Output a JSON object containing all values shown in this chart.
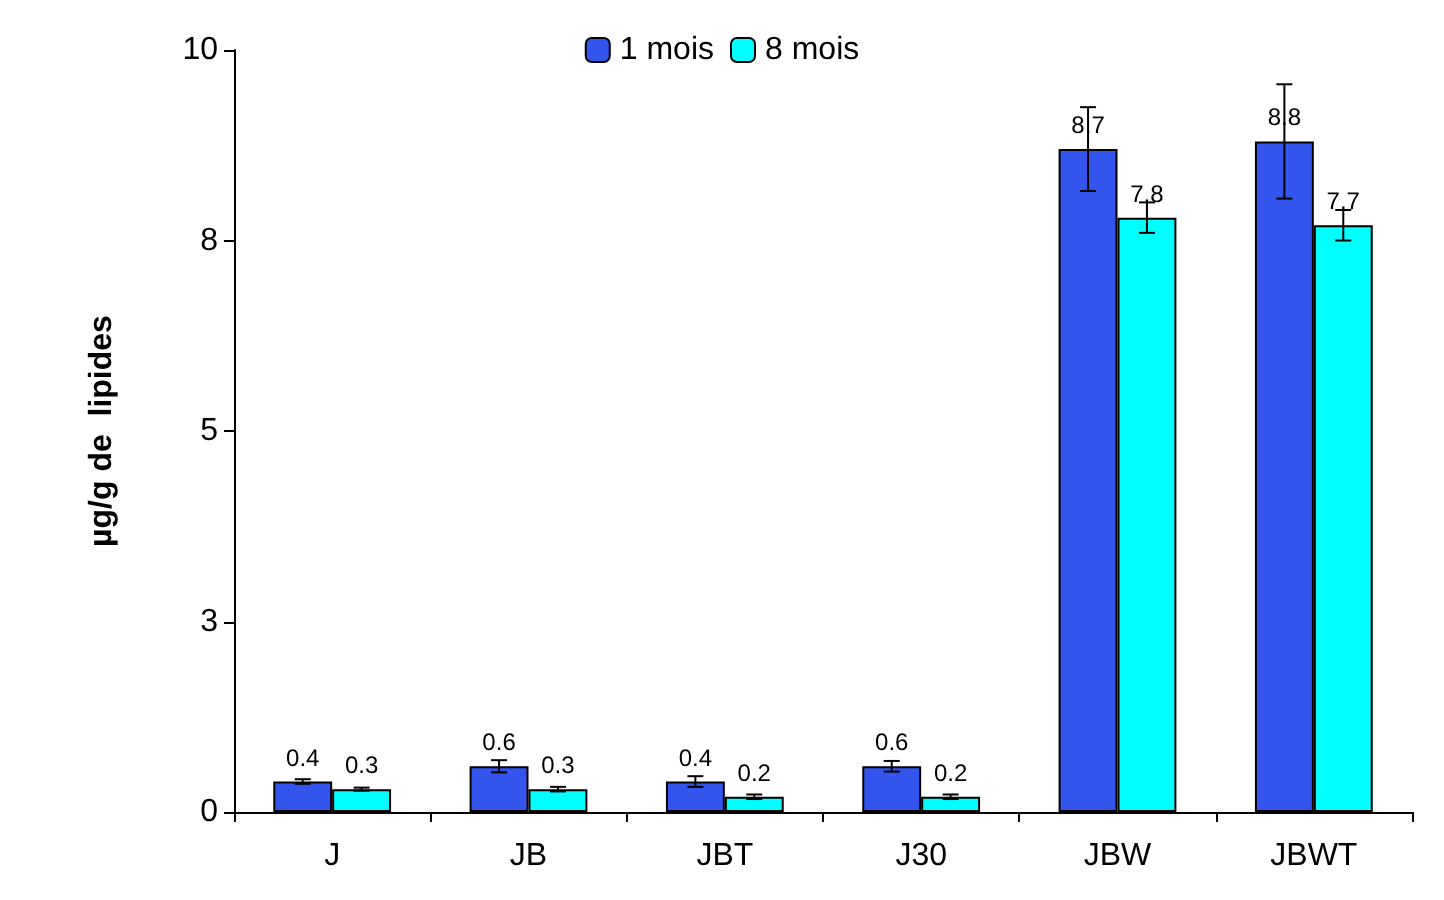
{
  "chart_data": {
    "type": "bar",
    "ylabel": "µg/g de  lipides",
    "categories": [
      "J",
      "JB",
      "JBT",
      "J30",
      "JBW",
      "JBWT"
    ],
    "series": [
      {
        "name": "1 mois",
        "color": "#3355ee",
        "values": [
          0.4,
          0.6,
          0.4,
          0.6,
          8.7,
          8.8
        ],
        "errors": [
          0.03,
          0.08,
          0.07,
          0.07,
          0.55,
          0.75
        ]
      },
      {
        "name": "8 mois",
        "color": "#00ffff",
        "values": [
          0.3,
          0.3,
          0.2,
          0.2,
          7.8,
          7.7
        ],
        "errors": [
          0.02,
          0.03,
          0.03,
          0.03,
          0.2,
          0.2
        ]
      }
    ],
    "ylim": [
      0,
      10
    ],
    "yticks": [
      0,
      {
        "value": 2.5,
        "label": "3"
      },
      5,
      {
        "value": 7.5,
        "label": "8"
      },
      10
    ],
    "data_labels": true,
    "legend": "top",
    "grid": false
  }
}
